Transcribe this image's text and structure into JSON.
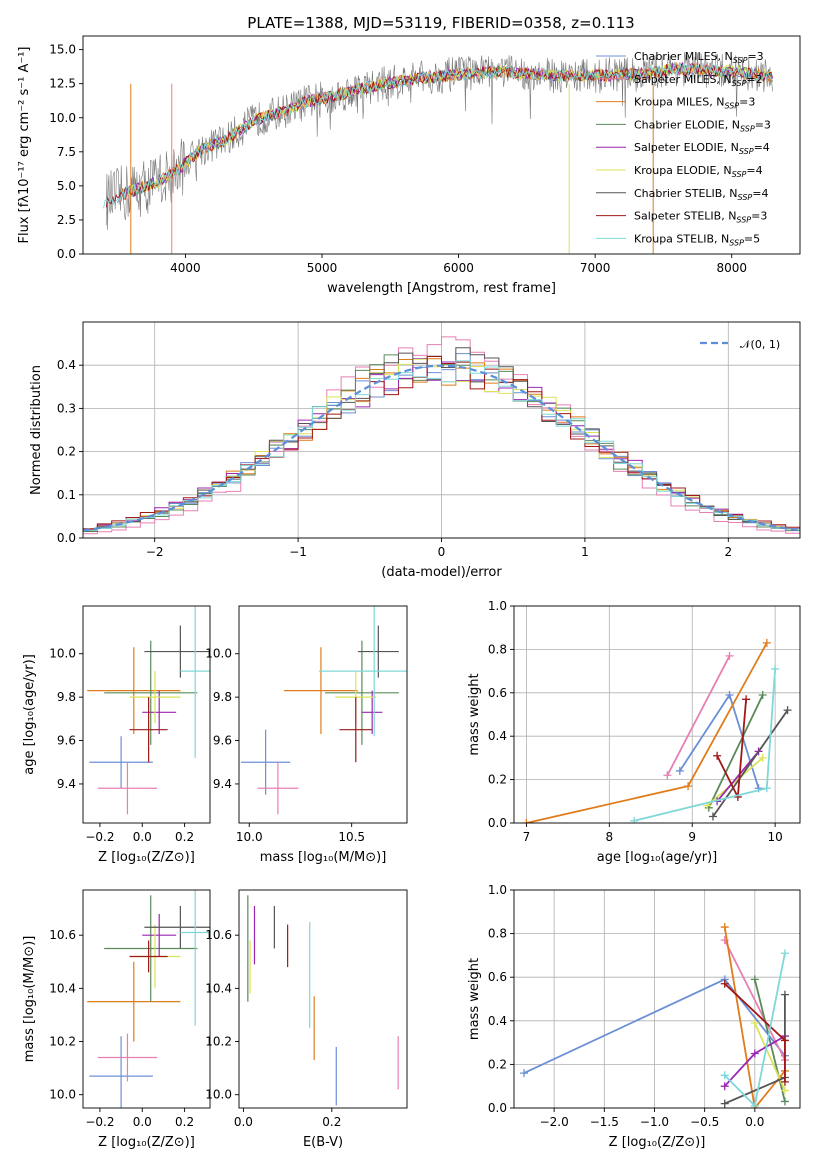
{
  "title": "PLATE=1388, MJD=53119, FIBERID=0358, z=0.113",
  "colors": {
    "chabrier_miles": "#6b8fd6",
    "salpeter_miles": "#e8837a",
    "kroupa_miles": "#e07b1a",
    "chabrier_elodie": "#5a8a5a",
    "salpeter_elodie": "#9b27b0",
    "kroupa_elodie": "#dce35a",
    "chabrier_stelib": "#555555",
    "salpeter_stelib": "#a01818",
    "kroupa_stelib": "#7fd8d8",
    "pink": "#e87fb4",
    "normal": "#5b8fd9"
  },
  "chart_data": [
    {
      "type": "line",
      "title": "PLATE=1388, MJD=53119, FIBERID=0358, z=0.113",
      "xlabel": "wavelength [Angstrom, rest frame]",
      "ylabel": "Flux [fλ10⁻¹⁷ erg cm⁻² s⁻¹ A⁻¹]",
      "xlim": [
        3250,
        8500
      ],
      "ylim": [
        0,
        16
      ],
      "xticks": [
        "4000",
        "5000",
        "6000",
        "7000",
        "8000"
      ],
      "yticks": [
        "0.0",
        "2.5",
        "5.0",
        "7.5",
        "10.0",
        "12.5",
        "15.0"
      ],
      "legend_position": "right",
      "legend": [
        {
          "prefix": "Chabrier MILES, N",
          "sub": "SSP",
          "suffix": "=3"
        },
        {
          "prefix": "Salpeter MILES, N",
          "sub": "SSP",
          "suffix": "=2"
        },
        {
          "prefix": "Kroupa MILES, N",
          "sub": "SSP",
          "suffix": "=3"
        },
        {
          "prefix": "Chabrier ELODIE, N",
          "sub": "SSP",
          "suffix": "=3"
        },
        {
          "prefix": "Salpeter ELODIE, N",
          "sub": "SSP",
          "suffix": "=4"
        },
        {
          "prefix": "Kroupa ELODIE, N",
          "sub": "SSP",
          "suffix": "=4"
        },
        {
          "prefix": "Chabrier STELIB, N",
          "sub": "SSP",
          "suffix": "=4"
        },
        {
          "prefix": "Salpeter STELIB, N",
          "sub": "SSP",
          "suffix": "=3"
        },
        {
          "prefix": "Kroupa STELIB, N",
          "sub": "SSP",
          "suffix": "=5"
        }
      ],
      "continuum_nodes": [
        [
          3400,
          3.8
        ],
        [
          3600,
          4.6
        ],
        [
          3800,
          5.3
        ],
        [
          3950,
          6.2
        ],
        [
          4100,
          7.6
        ],
        [
          4300,
          8.4
        ],
        [
          4500,
          9.8
        ],
        [
          4700,
          10.4
        ],
        [
          4900,
          11.2
        ],
        [
          5100,
          11.6
        ],
        [
          5400,
          12.4
        ],
        [
          5700,
          12.9
        ],
        [
          6000,
          13.2
        ],
        [
          6300,
          13.4
        ],
        [
          6700,
          13.1
        ],
        [
          7000,
          13.1
        ],
        [
          7300,
          13.2
        ],
        [
          7600,
          13.6
        ],
        [
          8000,
          13.4
        ],
        [
          8300,
          13.0
        ]
      ]
    },
    {
      "type": "line",
      "xlabel": "(data-model)/error",
      "ylabel": "Normed distribution",
      "xlim": [
        -2.5,
        2.5
      ],
      "ylim": [
        0,
        0.5
      ],
      "xticks": [
        "−2",
        "−1",
        "0",
        "1",
        "2"
      ],
      "yticks": [
        "0.0",
        "0.1",
        "0.2",
        "0.3",
        "0.4"
      ],
      "grid": true,
      "legend_position": "top-right",
      "legend_label": "𝒩(0, 1)",
      "histogram_bins": 50,
      "histogram_sigmas": [
        1.0,
        0.98,
        1.02,
        0.97,
        1.03,
        1.0,
        0.99,
        1.04,
        1.0
      ],
      "pink_sigma": 0.9
    },
    {
      "type": "scatter",
      "xlabel": "Z [log₁₀(Z/Z⊙)]",
      "ylabel": "age  [log₁₀(age/yr)]",
      "xlim": [
        -0.28,
        0.32
      ],
      "ylim": [
        9.22,
        10.22
      ],
      "xticks": [
        "−0.2",
        "0.0",
        "0.2"
      ],
      "yticks": [
        "9.4",
        "9.6",
        "9.8",
        "10.0"
      ],
      "points": [
        {
          "c": "chabrier_miles",
          "x": -0.1,
          "xe": 0.15,
          "y": 9.5,
          "ye": 0.12
        },
        {
          "c": "pink",
          "x": -0.07,
          "xe": 0.14,
          "y": 9.38,
          "ye": 0.12
        },
        {
          "c": "kroupa_miles",
          "x": -0.04,
          "xe": 0.22,
          "y": 9.83,
          "ye": 0.2
        },
        {
          "c": "chabrier_elodie",
          "x": 0.04,
          "xe": 0.22,
          "y": 9.82,
          "ye": 0.24
        },
        {
          "c": "salpeter_elodie",
          "x": 0.08,
          "xe": 0.08,
          "y": 9.73,
          "ye": 0.1
        },
        {
          "c": "kroupa_elodie",
          "x": 0.06,
          "xe": 0.12,
          "y": 9.8,
          "ye": 0.12
        },
        {
          "c": "chabrier_stelib",
          "x": 0.18,
          "xe": 0.17,
          "y": 10.01,
          "ye": 0.12
        },
        {
          "c": "salpeter_stelib",
          "x": 0.03,
          "xe": 0.09,
          "y": 9.65,
          "ye": 0.15
        },
        {
          "c": "kroupa_stelib",
          "x": 0.25,
          "xe": 0.07,
          "y": 9.92,
          "ye": 0.4
        }
      ]
    },
    {
      "type": "scatter",
      "xlabel": "mass [log₁₀(M/M⊙)]",
      "xlim": [
        9.95,
        10.77
      ],
      "ylim": [
        9.22,
        10.22
      ],
      "xticks": [
        "10.0",
        "10.5"
      ],
      "yticks": [
        "9.4",
        "9.6",
        "9.8",
        "10.0"
      ],
      "points": [
        {
          "c": "chabrier_miles",
          "x": 10.08,
          "xe": 0.12,
          "y": 9.5,
          "ye": 0.15
        },
        {
          "c": "pink",
          "x": 10.14,
          "xe": 0.1,
          "y": 9.38,
          "ye": 0.12
        },
        {
          "c": "kroupa_miles",
          "x": 10.35,
          "xe": 0.18,
          "y": 9.83,
          "ye": 0.2
        },
        {
          "c": "chabrier_elodie",
          "x": 10.55,
          "xe": 0.18,
          "y": 9.82,
          "ye": 0.24
        },
        {
          "c": "salpeter_elodie",
          "x": 10.6,
          "xe": 0.05,
          "y": 9.73,
          "ye": 0.1
        },
        {
          "c": "kroupa_elodie",
          "x": 10.52,
          "xe": 0.1,
          "y": 9.8,
          "ye": 0.12
        },
        {
          "c": "chabrier_stelib",
          "x": 10.63,
          "xe": 0.1,
          "y": 10.01,
          "ye": 0.12
        },
        {
          "c": "salpeter_stelib",
          "x": 10.52,
          "xe": 0.08,
          "y": 9.65,
          "ye": 0.15
        },
        {
          "c": "kroupa_stelib",
          "x": 10.61,
          "xe": 0.27,
          "y": 9.92,
          "ye": 0.3
        }
      ]
    },
    {
      "type": "line",
      "xlabel": "age  [log₁₀(age/yr)]",
      "ylabel": "mass weight",
      "xlim": [
        6.85,
        10.3
      ],
      "ylim": [
        0,
        1
      ],
      "xticks": [
        "7",
        "8",
        "9",
        "10"
      ],
      "yticks": [
        "0.0",
        "0.2",
        "0.4",
        "0.6",
        "0.8",
        "1.0"
      ],
      "grid": true,
      "series": [
        {
          "c": "pink",
          "points": [
            [
              8.7,
              0.22
            ],
            [
              9.45,
              0.77
            ]
          ]
        },
        {
          "c": "chabrier_miles",
          "points": [
            [
              8.85,
              0.24
            ],
            [
              9.45,
              0.59
            ],
            [
              9.8,
              0.16
            ]
          ]
        },
        {
          "c": "kroupa_miles",
          "points": [
            [
              7.0,
              0.0
            ],
            [
              8.95,
              0.17
            ],
            [
              9.9,
              0.83
            ]
          ]
        },
        {
          "c": "chabrier_elodie",
          "points": [
            [
              9.2,
              0.07
            ],
            [
              9.85,
              0.59
            ]
          ]
        },
        {
          "c": "kroupa_elodie",
          "points": [
            [
              9.18,
              0.08
            ],
            [
              9.85,
              0.3
            ]
          ]
        },
        {
          "c": "salpeter_elodie",
          "points": [
            [
              9.3,
              0.1
            ],
            [
              9.8,
              0.33
            ]
          ]
        },
        {
          "c": "chabrier_stelib",
          "points": [
            [
              9.25,
              0.03
            ],
            [
              10.15,
              0.52
            ]
          ]
        },
        {
          "c": "salpeter_stelib",
          "points": [
            [
              9.3,
              0.31
            ],
            [
              9.55,
              0.12
            ],
            [
              9.65,
              0.57
            ]
          ]
        },
        {
          "c": "kroupa_stelib",
          "points": [
            [
              8.3,
              0.01
            ],
            [
              9.9,
              0.16
            ],
            [
              10.0,
              0.71
            ]
          ]
        }
      ]
    },
    {
      "type": "scatter",
      "xlabel": "Z [log₁₀(Z/Z⊙)]",
      "ylabel": "mass [log₁₀(M/M⊙)]",
      "xlim": [
        -0.28,
        0.32
      ],
      "ylim": [
        9.95,
        10.77
      ],
      "xticks": [
        "−0.2",
        "0.0",
        "0.2"
      ],
      "yticks": [
        "10.0",
        "10.2",
        "10.4",
        "10.6"
      ],
      "points": [
        {
          "c": "chabrier_miles",
          "x": -0.1,
          "xe": 0.15,
          "y": 10.07,
          "ye": 0.15
        },
        {
          "c": "pink",
          "x": -0.07,
          "xe": 0.14,
          "y": 10.14,
          "ye": 0.09
        },
        {
          "c": "kroupa_miles",
          "x": -0.04,
          "xe": 0.22,
          "y": 10.35,
          "ye": 0.15
        },
        {
          "c": "chabrier_elodie",
          "x": 0.04,
          "xe": 0.22,
          "y": 10.55,
          "ye": 0.2
        },
        {
          "c": "salpeter_elodie",
          "x": 0.08,
          "xe": 0.08,
          "y": 10.6,
          "ye": 0.08
        },
        {
          "c": "kroupa_elodie",
          "x": 0.06,
          "xe": 0.12,
          "y": 10.52,
          "ye": 0.12
        },
        {
          "c": "chabrier_stelib",
          "x": 0.18,
          "xe": 0.17,
          "y": 10.63,
          "ye": 0.08
        },
        {
          "c": "salpeter_stelib",
          "x": 0.03,
          "xe": 0.09,
          "y": 10.52,
          "ye": 0.06
        },
        {
          "c": "kroupa_stelib",
          "x": 0.25,
          "xe": 0.07,
          "y": 10.61,
          "ye": 0.35
        }
      ]
    },
    {
      "type": "scatter",
      "xlabel": "E(B-V)",
      "xlim": [
        -0.01,
        0.37
      ],
      "ylim": [
        9.95,
        10.77
      ],
      "xticks": [
        "0.0",
        "0.2"
      ],
      "yticks": [
        "10.0",
        "10.2",
        "10.4",
        "10.6"
      ],
      "points": [
        {
          "c": "chabrier_elodie",
          "x": 0.01,
          "y": 10.55,
          "ye": 0.2
        },
        {
          "c": "kroupa_elodie",
          "x": 0.015,
          "y": 10.48,
          "ye": 0.1
        },
        {
          "c": "salpeter_elodie",
          "x": 0.025,
          "y": 10.6,
          "ye": 0.11
        },
        {
          "c": "chabrier_stelib",
          "x": 0.07,
          "y": 10.63,
          "ye": 0.08
        },
        {
          "c": "salpeter_stelib",
          "x": 0.1,
          "y": 10.56,
          "ye": 0.08
        },
        {
          "c": "kroupa_stelib",
          "x": 0.15,
          "y": 10.45,
          "ye": 0.2
        },
        {
          "c": "kroupa_miles",
          "x": 0.16,
          "y": 10.25,
          "ye": 0.12
        },
        {
          "c": "chabrier_miles",
          "x": 0.21,
          "y": 10.07,
          "ye": 0.11
        },
        {
          "c": "pink",
          "x": 0.35,
          "y": 10.12,
          "ye": 0.1
        }
      ]
    },
    {
      "type": "line",
      "xlabel": "Z [log₁₀(Z/Z⊙)]",
      "ylabel": "mass weight",
      "xlim": [
        -2.4,
        0.45
      ],
      "ylim": [
        0,
        1
      ],
      "xticks": [
        "−2.0",
        "−1.5",
        "−1.0",
        "−0.5",
        "0.0"
      ],
      "yticks": [
        "0.0",
        "0.2",
        "0.4",
        "0.6",
        "0.8",
        "1.0"
      ],
      "grid": true,
      "series": [
        {
          "c": "chabrier_miles",
          "points": [
            [
              -2.3,
              0.16
            ],
            [
              -0.3,
              0.59
            ],
            [
              0.3,
              0.24
            ]
          ]
        },
        {
          "c": "pink",
          "points": [
            [
              -0.3,
              0.77
            ],
            [
              0.3,
              0.22
            ]
          ]
        },
        {
          "c": "kroupa_miles",
          "points": [
            [
              -0.3,
              0.83
            ],
            [
              0.0,
              0.0
            ],
            [
              0.3,
              0.17
            ]
          ]
        },
        {
          "c": "chabrier_elodie",
          "points": [
            [
              0.0,
              0.59
            ],
            [
              0.3,
              0.03
            ]
          ]
        },
        {
          "c": "kroupa_elodie",
          "points": [
            [
              0.0,
              0.39
            ],
            [
              0.3,
              0.08
            ]
          ]
        },
        {
          "c": "salpeter_elodie",
          "points": [
            [
              -0.3,
              0.1
            ],
            [
              0.0,
              0.25
            ],
            [
              0.3,
              0.33
            ]
          ]
        },
        {
          "c": "chabrier_stelib",
          "points": [
            [
              -0.3,
              0.02
            ],
            [
              0.3,
              0.14
            ],
            [
              0.3,
              0.52
            ]
          ]
        },
        {
          "c": "salpeter_stelib",
          "points": [
            [
              -0.3,
              0.57
            ],
            [
              0.3,
              0.31
            ],
            [
              0.3,
              0.12
            ]
          ]
        },
        {
          "c": "kroupa_stelib",
          "points": [
            [
              -0.3,
              0.15
            ],
            [
              0.0,
              0.01
            ],
            [
              0.3,
              0.71
            ]
          ]
        }
      ]
    }
  ]
}
